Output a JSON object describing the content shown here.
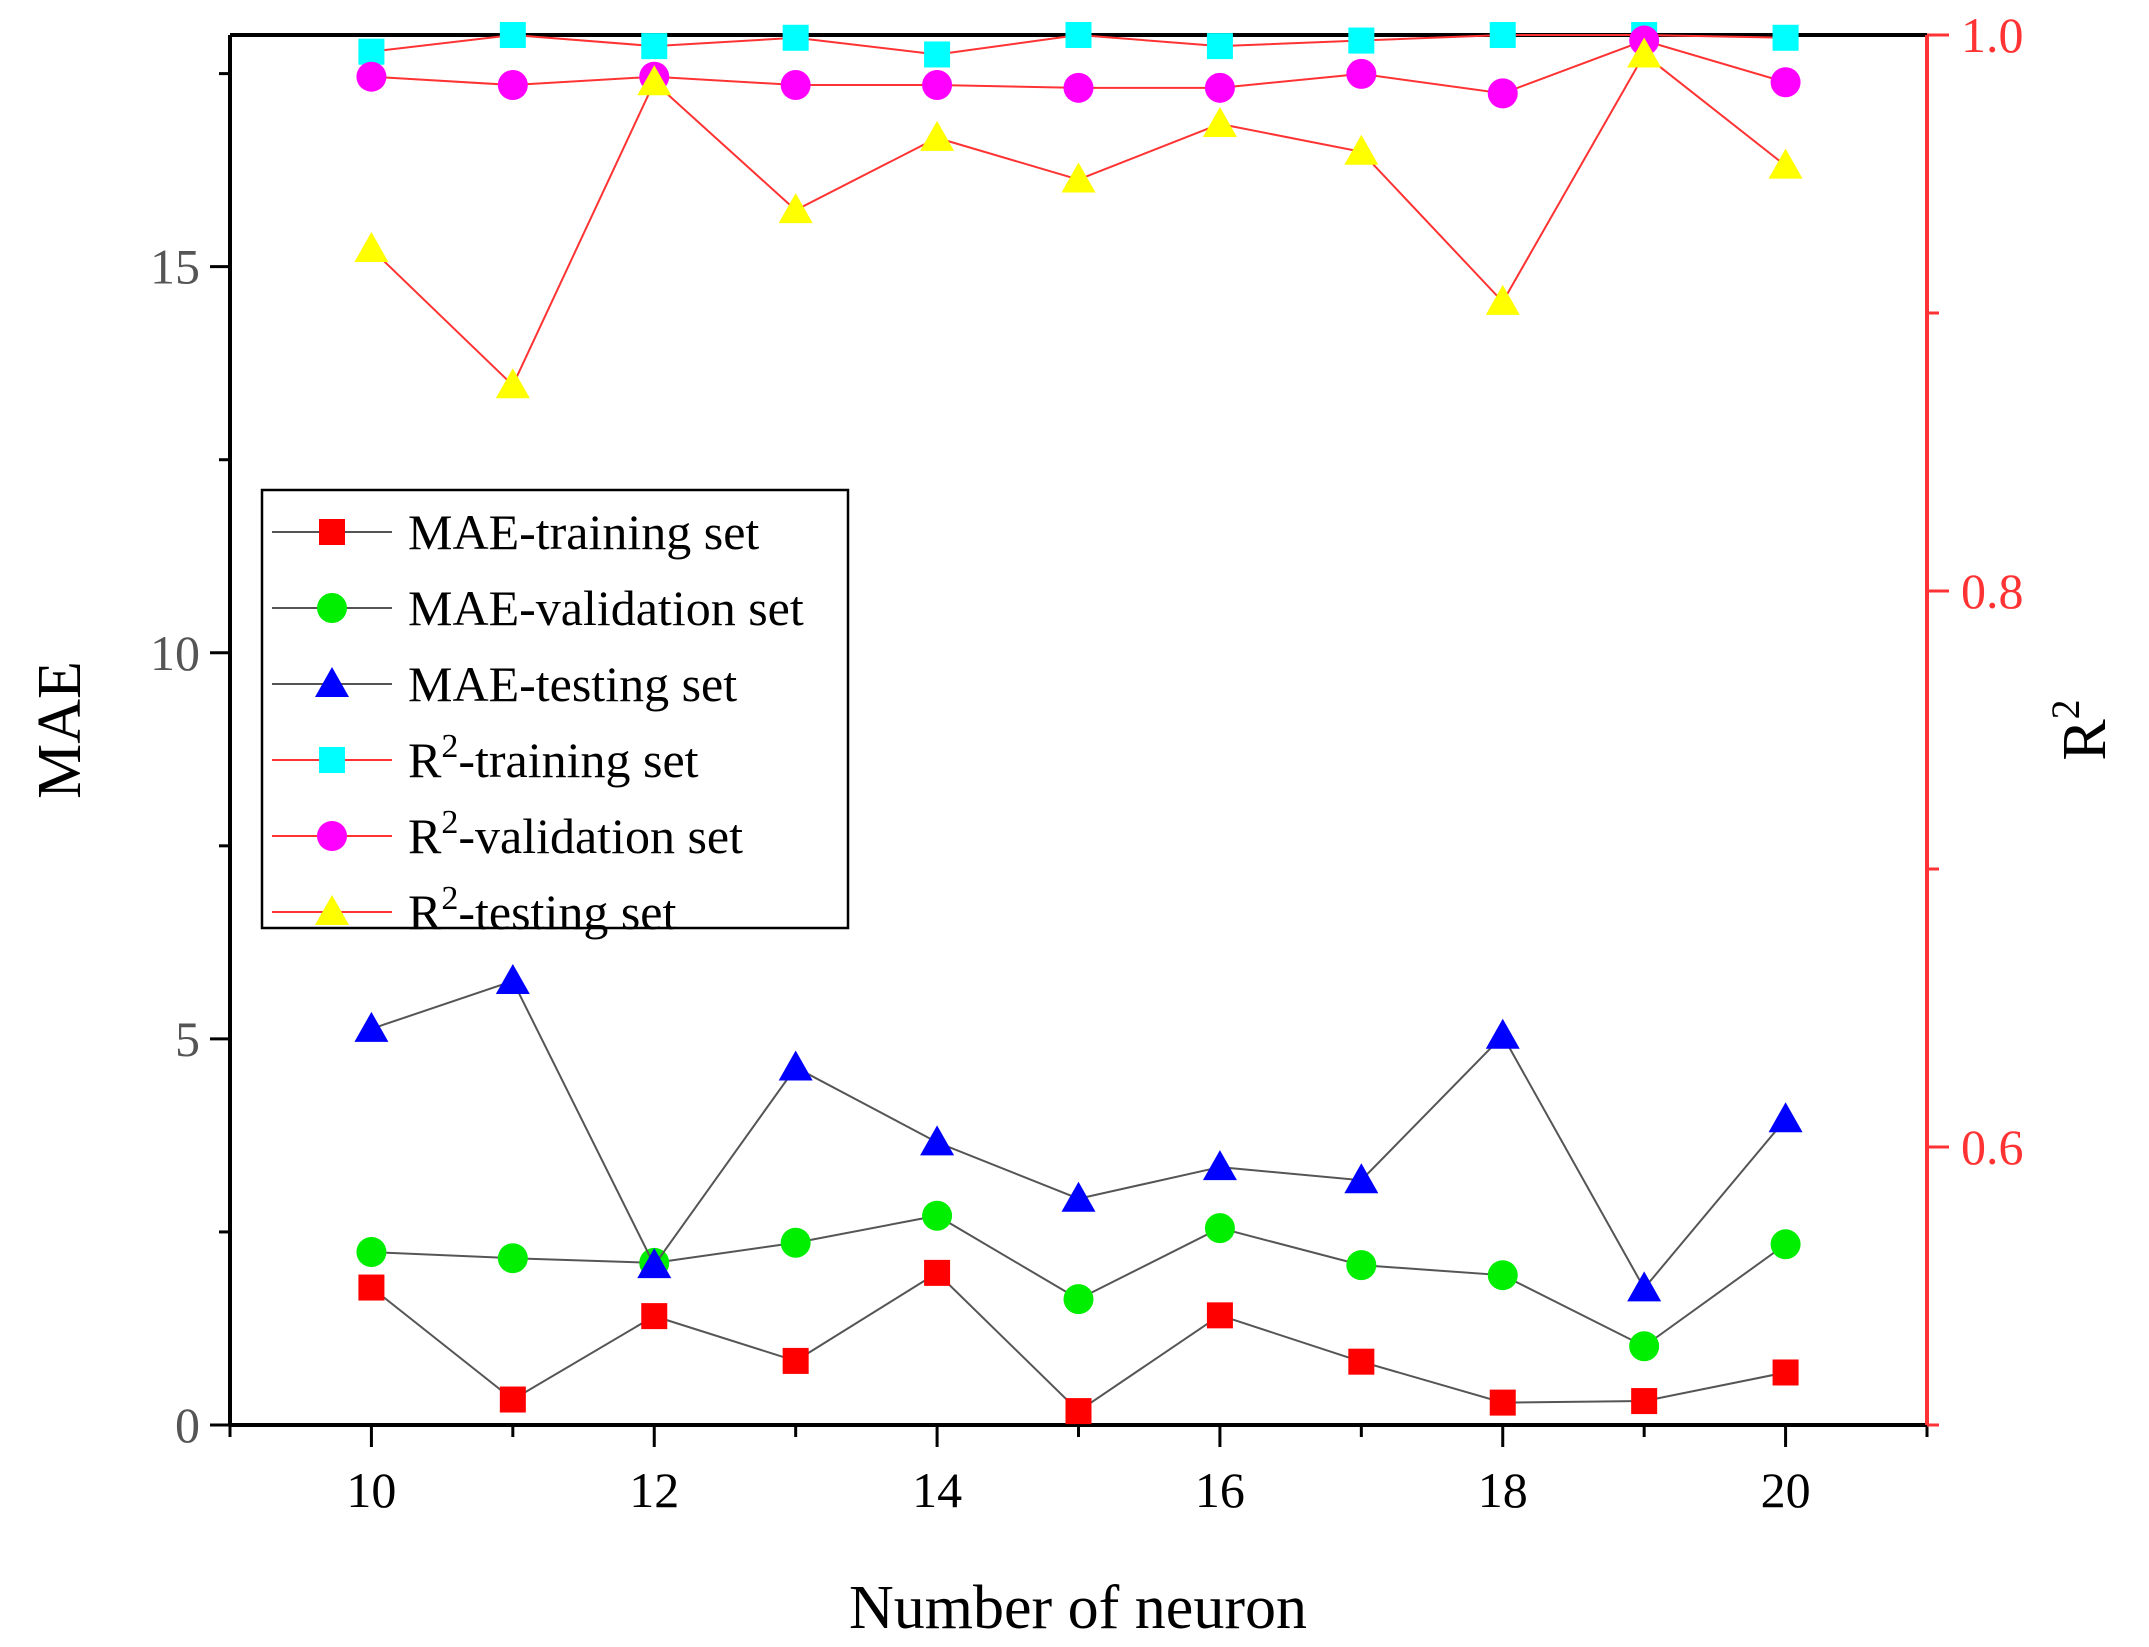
{
  "chart_data": {
    "type": "line",
    "title": "",
    "xlabel": "Number of neuron",
    "ylabel_left": "MAE",
    "ylabel_right": {
      "base": "R",
      "superscript": "2"
    },
    "xlim": [
      9,
      21
    ],
    "ylim_left": [
      0,
      18
    ],
    "ylim_right": [
      0.5,
      1.0
    ],
    "x_ticks": [
      10,
      12,
      14,
      16,
      18,
      20
    ],
    "x_tick_labels": [
      "10",
      "12",
      "14",
      "16",
      "18",
      "20"
    ],
    "left_ticks": [
      0,
      5,
      10,
      15
    ],
    "left_tick_labels": [
      "0",
      "5",
      "10",
      "15"
    ],
    "right_ticks": [
      0.6,
      0.8,
      1.0
    ],
    "right_tick_labels": [
      "0.6",
      "0.8",
      "1.0"
    ],
    "grid": false,
    "legend_position": "middle-left",
    "x": [
      10,
      11,
      12,
      13,
      14,
      15,
      16,
      17,
      18,
      19,
      20
    ],
    "series": [
      {
        "name": "MAE-training set",
        "label_main": "MAE-training set",
        "label_sup": "",
        "label_rest": "",
        "axis": "left",
        "marker": "square",
        "marker_color": "#ff0000",
        "line_color": "#555555",
        "values": [
          1.78,
          0.33,
          1.41,
          0.83,
          1.97,
          0.18,
          1.42,
          0.82,
          0.29,
          0.31,
          0.68
        ]
      },
      {
        "name": "MAE-validation set",
        "label_main": "MAE-validation set",
        "label_sup": "",
        "label_rest": "",
        "axis": "left",
        "marker": "circle",
        "marker_color": "#00ee00",
        "line_color": "#555555",
        "values": [
          2.24,
          2.16,
          2.1,
          2.36,
          2.71,
          1.63,
          2.55,
          2.07,
          1.94,
          1.02,
          2.34
        ]
      },
      {
        "name": "MAE-testing set",
        "label_main": "MAE-testing set",
        "label_sup": "",
        "label_rest": "",
        "axis": "left",
        "marker": "triangle",
        "marker_color": "#0000ff",
        "line_color": "#555555",
        "values": [
          5.13,
          5.75,
          2.07,
          4.63,
          3.66,
          2.93,
          3.34,
          3.17,
          5.04,
          1.77,
          3.96
        ]
      },
      {
        "name": "R2-training set",
        "label_main": "R",
        "label_sup": "2",
        "label_rest": "-training set",
        "axis": "right",
        "marker": "square",
        "marker_color": "#00ffff",
        "line_color": "#ff3333",
        "values": [
          0.994,
          1.0,
          0.996,
          0.999,
          0.993,
          1.0,
          0.996,
          0.998,
          1.0,
          1.0,
          0.999
        ]
      },
      {
        "name": "R2-validation set",
        "label_main": "R",
        "label_sup": "2",
        "label_rest": "-validation set",
        "axis": "right",
        "marker": "circle",
        "marker_color": "#ff00ff",
        "line_color": "#ff3333",
        "values": [
          0.985,
          0.982,
          0.985,
          0.982,
          0.982,
          0.981,
          0.981,
          0.986,
          0.979,
          0.998,
          0.983
        ]
      },
      {
        "name": "R2-testing set",
        "label_main": "R",
        "label_sup": "2",
        "label_rest": "-testing set",
        "axis": "right",
        "marker": "triangle",
        "marker_color": "#ffff00",
        "line_color": "#ff3333",
        "values": [
          0.923,
          0.874,
          0.983,
          0.937,
          0.963,
          0.948,
          0.968,
          0.958,
          0.904,
          0.993,
          0.953
        ]
      }
    ]
  }
}
